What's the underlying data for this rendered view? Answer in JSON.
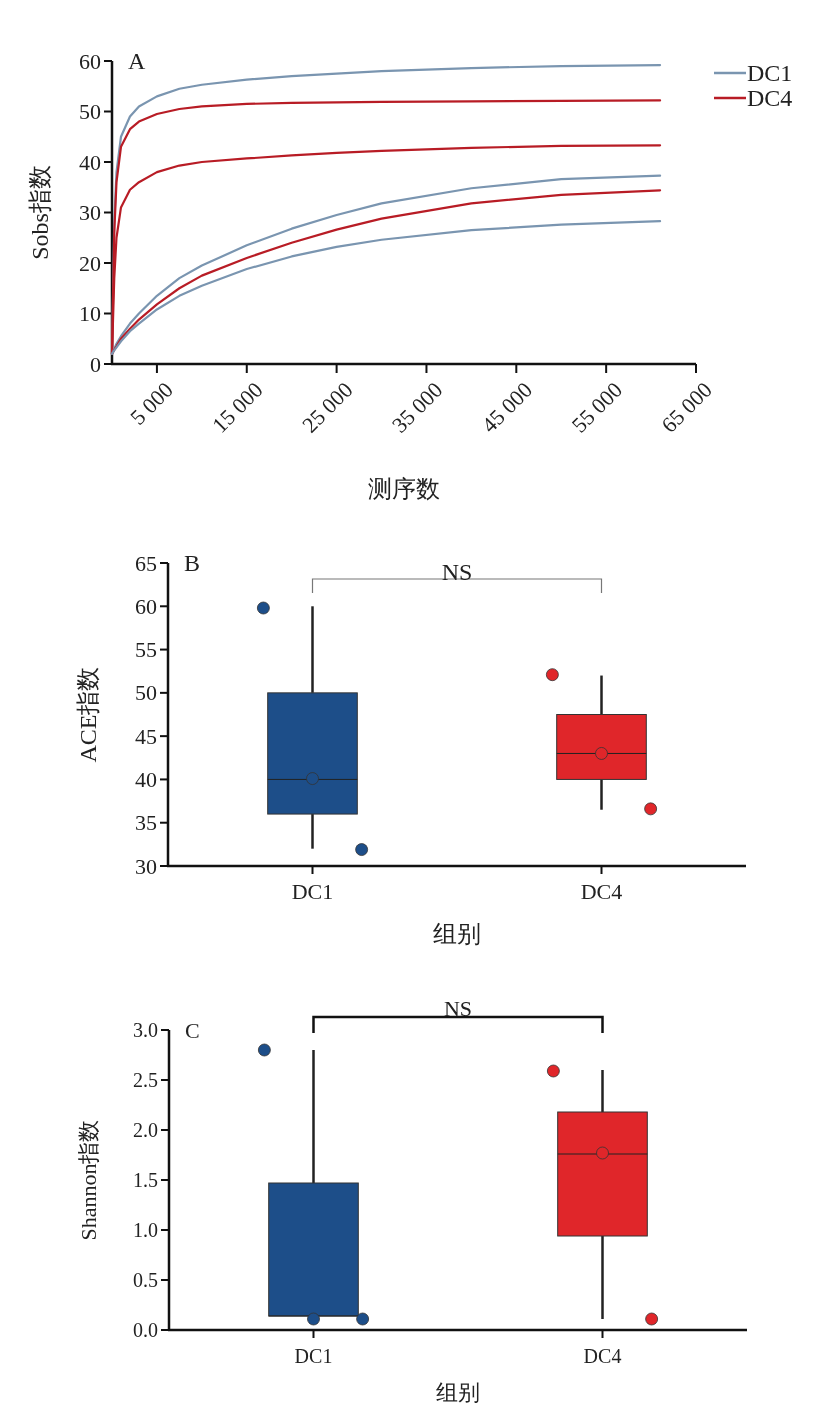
{
  "chart_data": [
    {
      "type": "line",
      "title": "A",
      "ylabel": "Sobs指数",
      "xlabel": "测序数",
      "xlim": [
        0,
        65000
      ],
      "xticks": [
        {
          "value": 5000,
          "label": "5 000"
        },
        {
          "value": 15000,
          "label": "15 000"
        },
        {
          "value": 25000,
          "label": "25 000"
        },
        {
          "value": 35000,
          "label": "35 000"
        },
        {
          "value": 45000,
          "label": "45 000"
        },
        {
          "value": 55000,
          "label": "55 000"
        },
        {
          "value": 65000,
          "label": "65 000"
        }
      ],
      "ylim": [
        0,
        60
      ],
      "yticks": [
        0,
        10,
        20,
        30,
        40,
        50,
        60
      ],
      "grid": false,
      "legend": "top right",
      "marker": "none",
      "line_style": "solid",
      "x": [
        0,
        250,
        500,
        1000,
        2000,
        3000,
        5000,
        7500,
        10000,
        15000,
        20000,
        25000,
        30000,
        40000,
        50000,
        61000
      ],
      "series": [
        {
          "name": "DC1",
          "color": "#7a95b0",
          "values": [
            2,
            28,
            38,
            45,
            49,
            51,
            53,
            54.5,
            55.3,
            56.3,
            57,
            57.5,
            58,
            58.6,
            59,
            59.2
          ]
        },
        {
          "name": "DC4",
          "color": "#b81c25",
          "values": [
            2,
            26,
            36,
            43,
            46.5,
            48,
            49.5,
            50.5,
            51,
            51.5,
            51.7,
            51.8,
            51.9,
            52,
            52.1,
            52.2
          ]
        },
        {
          "color": "#b81c25",
          "values": [
            2,
            17,
            25,
            31,
            34.5,
            36,
            38,
            39.3,
            40,
            40.7,
            41.3,
            41.8,
            42.2,
            42.8,
            43.2,
            43.3
          ]
        },
        {
          "color": "#7a95b0",
          "values": [
            2,
            3,
            4,
            5.5,
            8,
            10,
            13.5,
            17,
            19.5,
            23.5,
            26.8,
            29.5,
            31.8,
            34.8,
            36.6,
            37.3
          ]
        },
        {
          "color": "#b81c25",
          "values": [
            2,
            2.8,
            3.5,
            5,
            7,
            8.8,
            11.8,
            15,
            17.5,
            21,
            24,
            26.6,
            28.8,
            31.8,
            33.5,
            34.4
          ]
        },
        {
          "color": "#7a95b0",
          "values": [
            2,
            2.7,
            3.3,
            4.5,
            6.5,
            8,
            10.8,
            13.5,
            15.5,
            18.8,
            21.3,
            23.2,
            24.6,
            26.5,
            27.6,
            28.3
          ]
        }
      ]
    },
    {
      "type": "box",
      "title": "B",
      "ylabel": "ACE指数",
      "xlabel": "组别",
      "annotations": [
        "NS"
      ],
      "categories": [
        "DC1",
        "DC4"
      ],
      "colors": [
        "#1d4e89",
        "#e0262a"
      ],
      "ylim": [
        30,
        65
      ],
      "yticks": [
        30,
        35,
        40,
        45,
        50,
        55,
        60,
        65
      ],
      "grid": false,
      "legend": false,
      "boxes": [
        {
          "low": 32,
          "q1": 36,
          "median": 40,
          "q3": 50,
          "high": 60
        },
        {
          "low": 36.5,
          "q1": 40,
          "median": 43,
          "q3": 47.5,
          "high": 52
        }
      ],
      "series": [
        {
          "type": "scatter",
          "x": [
            "DC1",
            "DC1",
            "DC1",
            "DC4",
            "DC4",
            "DC4"
          ],
          "values": [
            59.8,
            40.1,
            31.9,
            52.1,
            43,
            36.6
          ],
          "colors": [
            "#1d4e89",
            "#1d4e89",
            "#1d4e89",
            "#e0262a",
            "#e0262a",
            "#e0262a"
          ]
        }
      ]
    },
    {
      "type": "box",
      "title": "C",
      "ylabel": "Shannon指数",
      "xlabel": "组别",
      "annotations": [
        "NS"
      ],
      "categories": [
        "DC1",
        "DC4"
      ],
      "colors": [
        "#1d4e89",
        "#e0262a"
      ],
      "ylim": [
        0,
        3
      ],
      "yticks": [
        {
          "value": 0,
          "label": "0.0"
        },
        {
          "value": 0.5,
          "label": "0.5"
        },
        {
          "value": 1,
          "label": "1.0"
        },
        {
          "value": 1.5,
          "label": "1.5"
        },
        {
          "value": 2,
          "label": "2.0"
        },
        {
          "value": 2.5,
          "label": "2.5"
        },
        {
          "value": 3,
          "label": "3.0"
        }
      ],
      "grid": false,
      "legend": false,
      "boxes": [
        {
          "low": 0.11,
          "q1": 0.14,
          "median": 0.14,
          "q3": 1.47,
          "high": 2.8
        },
        {
          "low": 0.11,
          "q1": 0.94,
          "median": 1.76,
          "q3": 2.18,
          "high": 2.6
        }
      ],
      "series": [
        {
          "type": "scatter",
          "x": [
            "DC1",
            "DC1",
            "DC1",
            "DC4",
            "DC4",
            "DC4"
          ],
          "values": [
            2.8,
            0.11,
            0.11,
            2.59,
            1.77,
            0.11
          ],
          "colors": [
            "#1d4e89",
            "#1d4e89",
            "#1d4e89",
            "#e0262a",
            "#e0262a",
            "#e0262a"
          ]
        }
      ]
    }
  ]
}
